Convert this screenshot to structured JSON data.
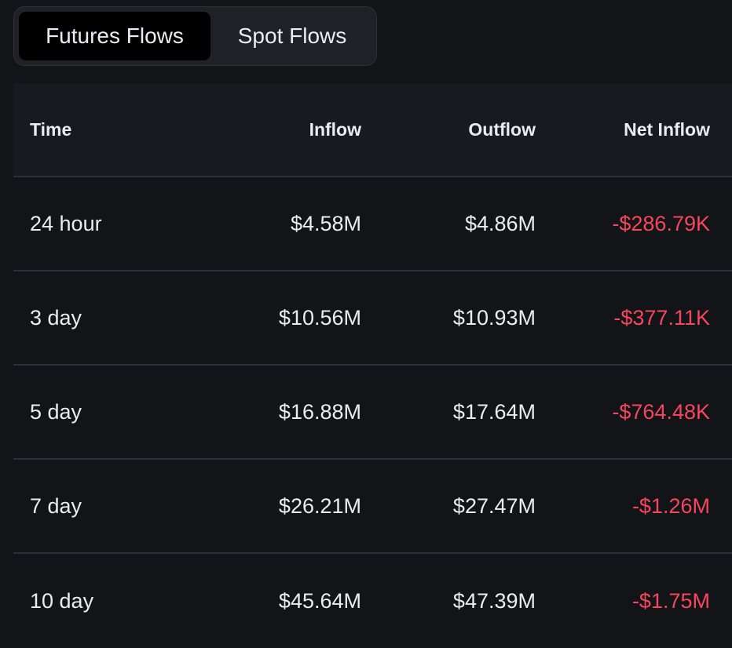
{
  "tabs": [
    {
      "label": "Futures Flows",
      "active": true
    },
    {
      "label": "Spot Flows",
      "active": false
    }
  ],
  "table": {
    "columns": [
      "Time",
      "Inflow",
      "Outflow",
      "Net Inflow"
    ],
    "rows": [
      {
        "time": "24 hour",
        "inflow": "$4.58M",
        "outflow": "$4.86M",
        "net_inflow": "-$286.79K"
      },
      {
        "time": "3 day",
        "inflow": "$10.56M",
        "outflow": "$10.93M",
        "net_inflow": "-$377.11K"
      },
      {
        "time": "5 day",
        "inflow": "$16.88M",
        "outflow": "$17.64M",
        "net_inflow": "-$764.48K"
      },
      {
        "time": "7 day",
        "inflow": "$26.21M",
        "outflow": "$27.47M",
        "net_inflow": "-$1.26M"
      },
      {
        "time": "10 day",
        "inflow": "$45.64M",
        "outflow": "$47.39M",
        "net_inflow": "-$1.75M"
      }
    ]
  },
  "colors": {
    "background": "#131418",
    "active_tab": "#000000",
    "negative": "#f6465d",
    "text": "#eaecef"
  }
}
